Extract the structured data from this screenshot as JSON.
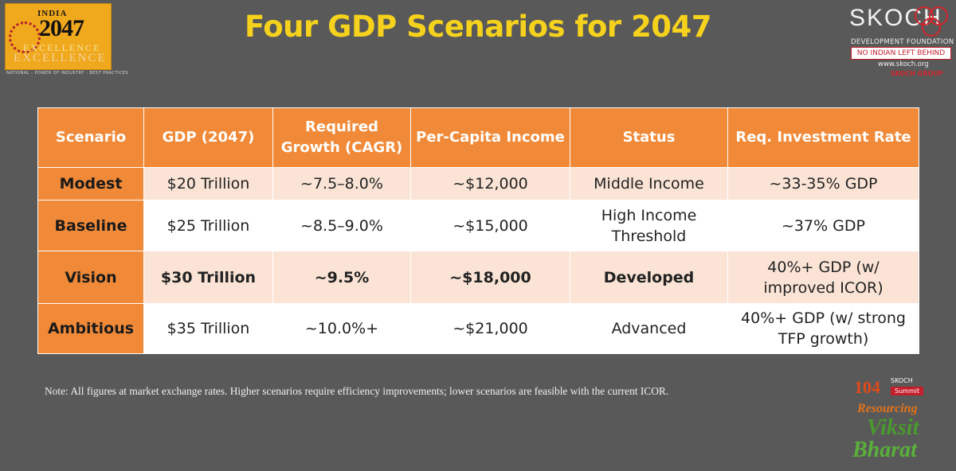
{
  "logo_left": {
    "country": "INDIA",
    "year": "2047",
    "excellence_line1": "EXCELLENCE",
    "excellence_line2": "EXCELLENCE",
    "tagline": "NATIONAL - POWER OF INDUSTRY - BEST PRACTICES"
  },
  "title": "Four GDP Scenarios for 2047",
  "logo_right": {
    "name": "SKOCH",
    "foundation": "DEVELOPMENT FOUNDATION",
    "motto": "NO INDIAN LEFT BEHIND",
    "url": "www.skoch.org",
    "group": "SKOCH GROUP"
  },
  "table": {
    "headers": [
      "Scenario",
      "GDP (2047)",
      "Required Growth (CAGR)",
      "Per-Capita Income",
      "Status",
      "Req. Investment Rate"
    ],
    "rows": [
      {
        "scenario": "Modest",
        "gdp": "$20 Trillion",
        "growth": "~7.5–8.0%",
        "income": "~$12,000",
        "status": "Middle Income",
        "investment": "~33-35% GDP"
      },
      {
        "scenario": "Baseline",
        "gdp": "$25 Trillion",
        "growth": "~8.5–9.0%",
        "income": "~$15,000",
        "status": "High Income Threshold",
        "investment": "~37% GDP"
      },
      {
        "scenario": "Vision",
        "gdp": "$30 Trillion",
        "growth": "~9.5%",
        "income": "~$18,000",
        "status": "Developed",
        "investment": "40%+ GDP (w/ improved ICOR)"
      },
      {
        "scenario": "Ambitious",
        "gdp": "$35 Trillion",
        "growth": "~10.0%+",
        "income": "~$21,000",
        "status": "Advanced",
        "investment": "40%+ GDP (w/ strong TFP growth)"
      }
    ]
  },
  "note": "Note: All figures at market exchange rates. Higher scenarios require efficiency improvements; lower scenarios are feasible with the current ICOR.",
  "summit": {
    "number": "104",
    "brand": "SKOCH",
    "badge": "Summit",
    "line1": "Resourcing",
    "line2": "Viksit",
    "line3": "Bharat"
  }
}
